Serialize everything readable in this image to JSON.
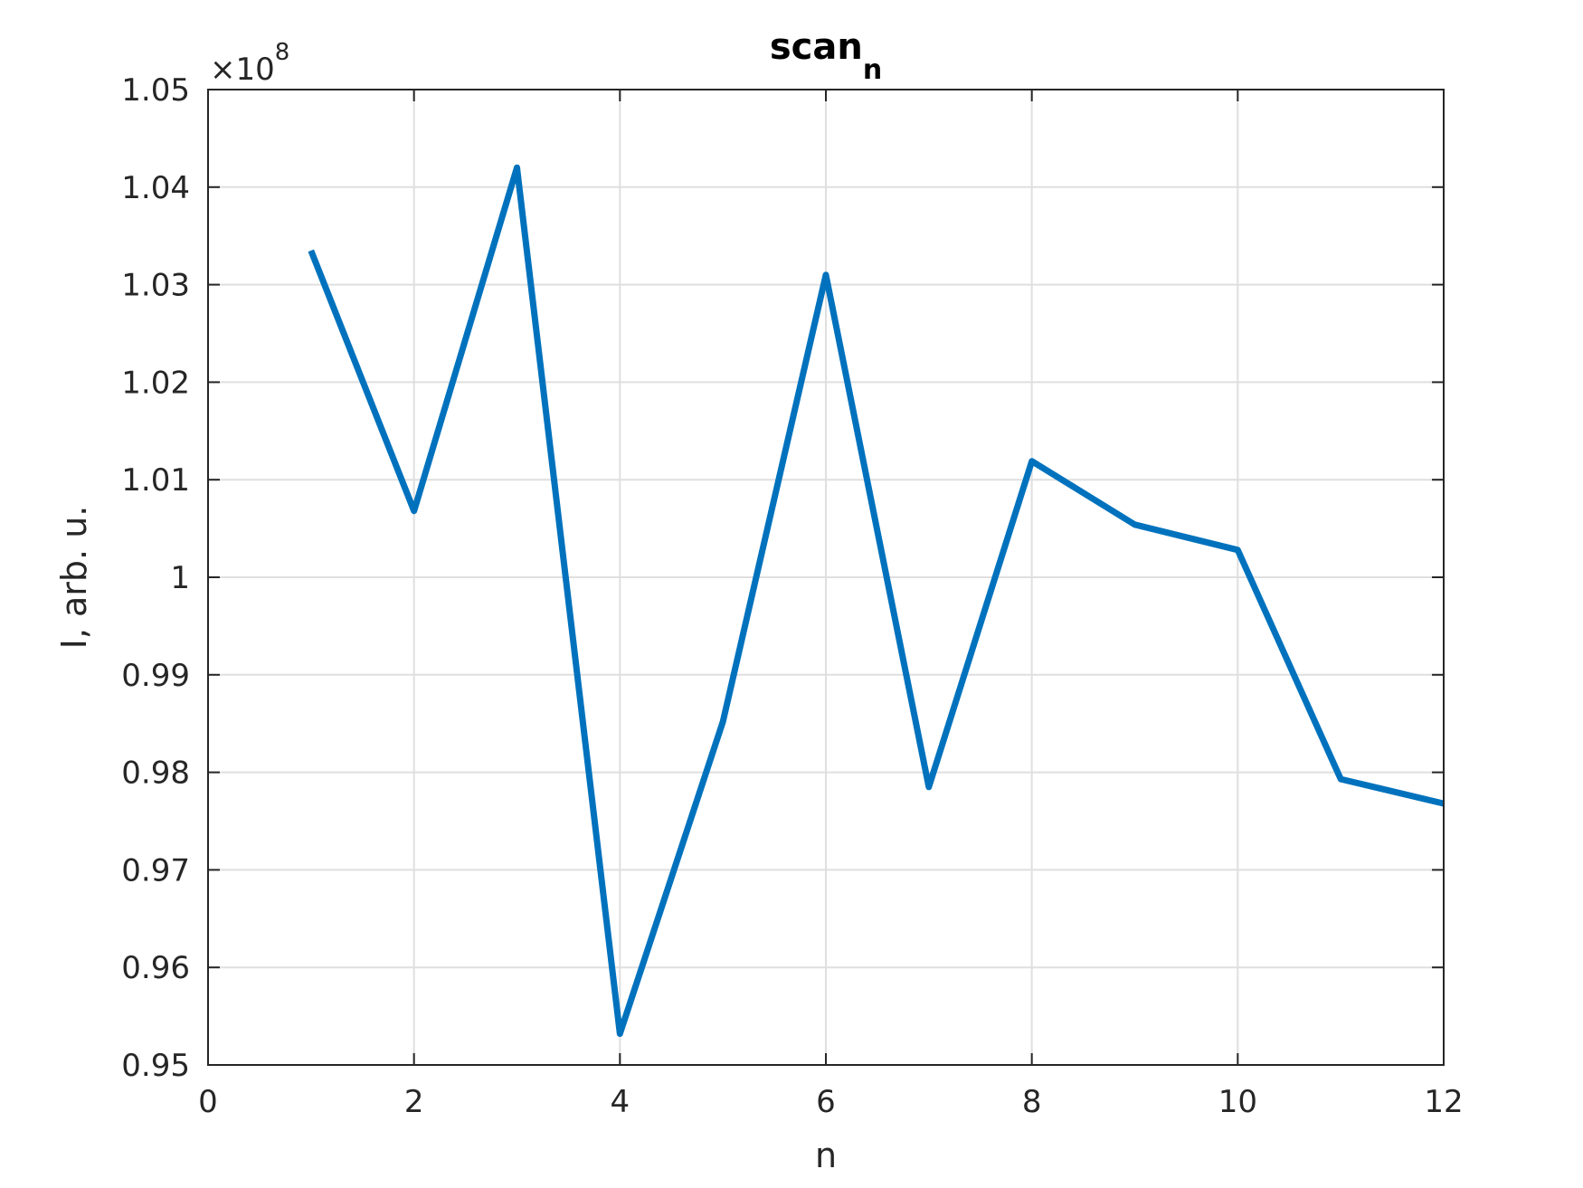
{
  "chart_data": {
    "type": "line",
    "title": "scan",
    "title_subscript": "n",
    "xlabel": "n",
    "ylabel": "I, arb. u.",
    "y_multiplier": "×10",
    "y_multiplier_exponent": "8",
    "xlim": [
      0,
      12
    ],
    "ylim": [
      0.95,
      1.05
    ],
    "xticks": [
      0,
      2,
      4,
      6,
      8,
      10,
      12
    ],
    "xtick_labels": [
      "0",
      "2",
      "4",
      "6",
      "8",
      "10",
      "12"
    ],
    "yticks": [
      0.95,
      0.96,
      0.97,
      0.98,
      0.99,
      1.0,
      1.01,
      1.02,
      1.03,
      1.04,
      1.05
    ],
    "ytick_labels": [
      "0.95",
      "0.96",
      "0.97",
      "0.98",
      "0.99",
      "1",
      "1.01",
      "1.02",
      "1.03",
      "1.04",
      "1.05"
    ],
    "grid": true,
    "series": [
      {
        "color": "#0072BD",
        "x": [
          1,
          2,
          3,
          4,
          5,
          6,
          7,
          8,
          9,
          10,
          11,
          12
        ],
        "y": [
          1.0335,
          1.0068,
          1.042,
          0.9532,
          0.9852,
          1.031,
          0.9785,
          1.0119,
          1.0054,
          1.0028,
          0.9793,
          0.9768
        ]
      }
    ]
  }
}
